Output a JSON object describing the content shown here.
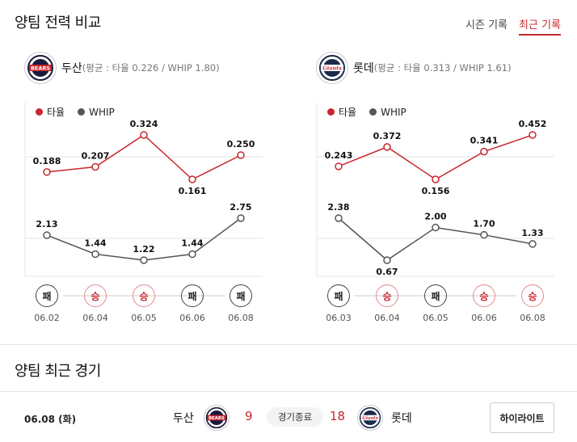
{
  "title": "양팀 전력 비교",
  "tabs": [
    {
      "label": "시즌 기록",
      "active": false
    },
    {
      "label": "최근 기록",
      "active": true
    }
  ],
  "legend": {
    "avg_label": "타율",
    "whip_label": "WHIP",
    "avg_color": "#c8282e",
    "whip_color": "#555555"
  },
  "teams": [
    {
      "name": "두산",
      "summary": "(평균 : 타율 0.226 / WHIP 1.80)",
      "logo_text": "BEARS",
      "logo_color": "#c8282e",
      "avg": [
        "0.188",
        "0.207",
        "0.324",
        "0.161",
        "0.250"
      ],
      "whip": [
        "2.13",
        "1.44",
        "1.22",
        "1.44",
        "2.75"
      ],
      "games": [
        {
          "result": "패",
          "type": "loss",
          "date": "06.02"
        },
        {
          "result": "승",
          "type": "win",
          "date": "06.04"
        },
        {
          "result": "승",
          "type": "win",
          "date": "06.05"
        },
        {
          "result": "패",
          "type": "loss",
          "date": "06.06"
        },
        {
          "result": "패",
          "type": "loss",
          "date": "06.08"
        }
      ]
    },
    {
      "name": "롯데",
      "summary": "(평균 : 타율 0.313 / WHIP 1.61)",
      "logo_text": "Giants",
      "logo_color": "#c8282e",
      "avg": [
        "0.243",
        "0.372",
        "0.156",
        "0.341",
        "0.452"
      ],
      "whip": [
        "2.38",
        "0.67",
        "2.00",
        "1.70",
        "1.33"
      ],
      "games": [
        {
          "result": "패",
          "type": "loss",
          "date": "06.03"
        },
        {
          "result": "승",
          "type": "win",
          "date": "06.04"
        },
        {
          "result": "패",
          "type": "loss",
          "date": "06.05"
        },
        {
          "result": "승",
          "type": "win",
          "date": "06.06"
        },
        {
          "result": "승",
          "type": "win",
          "date": "06.08"
        }
      ]
    }
  ],
  "chart_data": [
    {
      "type": "line",
      "x": [
        "06.02",
        "06.04",
        "06.05",
        "06.06",
        "06.08"
      ],
      "series": [
        {
          "name": "타율",
          "values": [
            0.188,
            0.207,
            0.324,
            0.161,
            0.25
          ]
        },
        {
          "name": "WHIP",
          "values": [
            2.13,
            1.44,
            1.22,
            1.44,
            2.75
          ]
        }
      ]
    },
    {
      "type": "line",
      "x": [
        "06.03",
        "06.04",
        "06.05",
        "06.06",
        "06.08"
      ],
      "series": [
        {
          "name": "타율",
          "values": [
            0.243,
            0.372,
            0.156,
            0.341,
            0.452
          ]
        },
        {
          "name": "WHIP",
          "values": [
            2.38,
            0.67,
            2.0,
            1.7,
            1.33
          ]
        }
      ]
    }
  ],
  "recent": {
    "title": "양팀 최근 경기",
    "date": "06.08 (화)",
    "home_name": "두산",
    "home_score": "9",
    "status": "경기종료",
    "away_score": "18",
    "away_name": "롯데",
    "highlight_label": "하이라이트"
  }
}
